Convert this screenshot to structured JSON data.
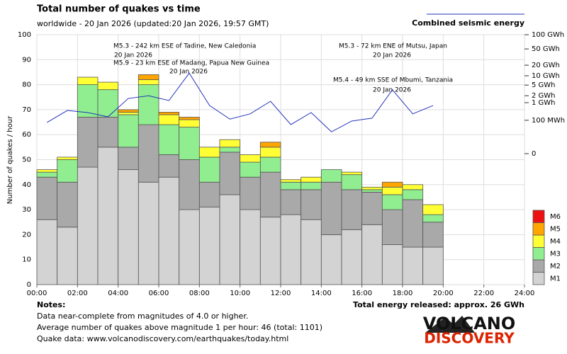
{
  "chart_data": {
    "type": "bar",
    "stacked": true,
    "title": "Total number of quakes vs time",
    "subtitle": "worldwide - 20 Jan 2026 (updated:20 Jan 2026, 19:57 GMT)",
    "y_label": "Number of quakes / hour",
    "x": [
      0,
      1,
      2,
      3,
      4,
      5,
      6,
      7,
      8,
      9,
      10,
      11,
      12,
      13,
      14,
      15,
      16,
      17,
      18,
      19
    ],
    "xlim": [
      0,
      24
    ],
    "xticks": [
      {
        "value": 0,
        "label": "00:00"
      },
      {
        "value": 2,
        "label": "02:00"
      },
      {
        "value": 4,
        "label": "04:00"
      },
      {
        "value": 6,
        "label": "06:00"
      },
      {
        "value": 8,
        "label": "08:00"
      },
      {
        "value": 10,
        "label": "10:00"
      },
      {
        "value": 12,
        "label": "12:00"
      },
      {
        "value": 14,
        "label": "14:00"
      },
      {
        "value": 16,
        "label": "16:00"
      },
      {
        "value": 18,
        "label": "18:00"
      },
      {
        "value": 20,
        "label": "20:00"
      },
      {
        "value": 22,
        "label": "22:00"
      },
      {
        "value": 24,
        "label": "24:00"
      }
    ],
    "ylim": [
      0,
      100
    ],
    "yticks": [
      0,
      10,
      20,
      30,
      40,
      50,
      60,
      70,
      80,
      90,
      100
    ],
    "grid": true,
    "series": [
      {
        "name": "M1",
        "color": "#d3d3d3",
        "values": [
          26,
          23,
          47,
          55,
          46,
          41,
          43,
          30,
          31,
          36,
          30,
          27,
          28,
          26,
          20,
          22,
          24,
          16,
          15,
          15
        ]
      },
      {
        "name": "M2",
        "color": "#a9a9a9",
        "values": [
          17,
          18,
          20,
          12,
          9,
          23,
          9,
          20,
          10,
          17,
          13,
          18,
          10,
          12,
          21,
          16,
          13,
          14,
          19,
          10
        ]
      },
      {
        "name": "M3",
        "color": "#90ee90",
        "values": [
          2,
          9,
          13,
          11,
          13,
          16,
          12,
          13,
          10,
          2,
          6,
          6,
          3,
          3,
          5,
          6,
          1,
          6,
          4,
          3
        ]
      },
      {
        "name": "M4",
        "color": "#ffff33",
        "values": [
          1,
          1,
          3,
          3,
          1,
          2,
          4,
          3,
          4,
          3,
          3,
          4,
          1,
          2,
          0,
          1,
          1,
          3,
          2,
          4
        ]
      },
      {
        "name": "M5",
        "color": "#ffa500",
        "values": [
          0,
          0,
          0,
          0,
          1,
          2,
          1,
          1,
          0,
          0,
          0,
          2,
          0,
          0,
          0,
          0,
          0,
          2,
          0,
          0
        ]
      },
      {
        "name": "M6",
        "color": "#ee1111",
        "values": [
          0,
          0,
          0,
          0,
          0,
          0,
          0,
          0,
          0,
          0,
          0,
          0,
          0,
          0,
          0,
          0,
          0,
          0,
          0,
          0
        ]
      },
      {
        "name": "Combined seismic energy",
        "type": "line",
        "axis": "y2",
        "color": "#2233bb",
        "values": [
          0.069,
          0.406,
          0.31,
          0.17,
          1.54,
          2.0,
          1.25,
          12,
          0.73,
          0.12,
          0.26,
          1.16,
          0.047,
          0.31,
          0.01,
          0.088,
          0.14,
          3.4,
          0.26,
          0.73
        ]
      }
    ],
    "y2lim": [
      0,
      100
    ],
    "y2power": 0.184,
    "y2ticks": [
      0,
      {
        "value": 0.1,
        "label": "100 MWh"
      },
      {
        "value": 1,
        "label": "1 GWh"
      },
      {
        "value": 2,
        "label": "2 GWh"
      },
      {
        "value": 5,
        "label": "5 GWh"
      },
      {
        "value": 10,
        "label": "10 GWh"
      },
      {
        "value": 20,
        "label": "20 GWh"
      },
      {
        "value": 50,
        "label": "50 GWh"
      },
      {
        "value": 100,
        "label": "100 GWh"
      }
    ],
    "annotations": [
      {
        "text": "M5.3 - 242 km ESE of Tadine, New Caledonia",
        "date": "20 Jan 2026"
      },
      {
        "text": "M5.9 - 23 km ESE of Madang, Papua New Guinea",
        "date": "20 Jan 2026"
      },
      {
        "text": "M5.3 - 72 km ENE of Mutsu, Japan",
        "date": "20 Jan 2026"
      },
      {
        "text": "M5.4 - 49 km SSE of Mbumi, Tanzania",
        "date": "20 Jan 2026"
      }
    ],
    "legend_position": "right"
  },
  "notes": {
    "heading": "Notes:",
    "lines": [
      "Data near-complete from magnitudes of 4.0 or higher.",
      "Average number of quakes above magnitude 1 per hour: 46 (total: 1101)",
      "Quake data: www.volcanodiscovery.com/earthquakes/today.html"
    ]
  },
  "total_energy": "Total energy released: approx. 26 GWh",
  "logo": {
    "line1": "VOLCANO",
    "line2": "DISCOVERY"
  }
}
